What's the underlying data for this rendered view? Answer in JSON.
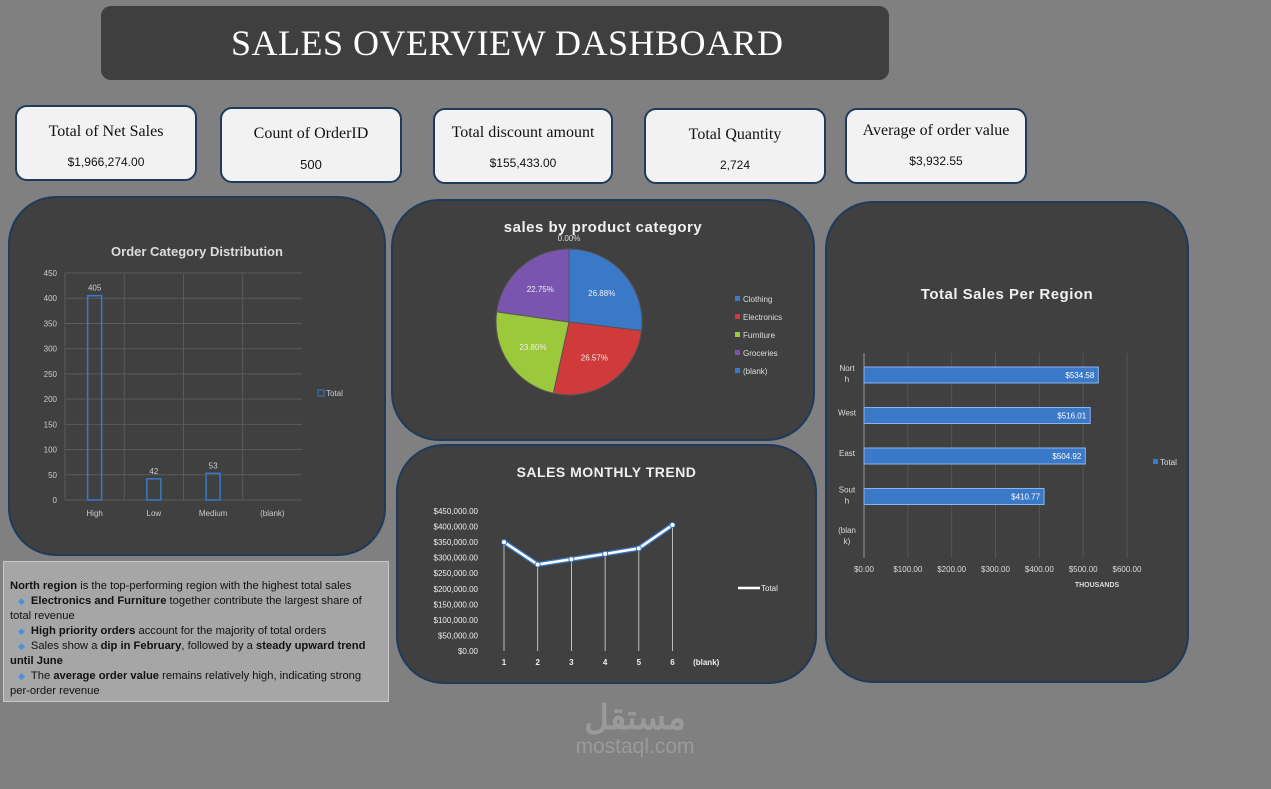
{
  "title": "SALES OVERVIEW DASHBOARD",
  "kpis": [
    {
      "label": "Total of Net Sales",
      "value": "$1,966,274.00"
    },
    {
      "label": "Count of OrderID",
      "value": "500"
    },
    {
      "label": "Total discount amount",
      "value": "$155,433.00"
    },
    {
      "label": "Total Quantity",
      "value": "2,724"
    },
    {
      "label": "Average of order value",
      "value": "$3,932.55"
    }
  ],
  "chart_data": [
    {
      "type": "bar",
      "title": "Order Category Distribution",
      "categories": [
        "High",
        "Low",
        "Medium",
        "(blank)"
      ],
      "values": [
        405,
        42,
        53,
        null
      ],
      "ylim": [
        0,
        450
      ],
      "yticks": [
        "0",
        "50",
        "100",
        "150",
        "200",
        "250",
        "300",
        "350",
        "400",
        "450"
      ],
      "legend": "Total",
      "legend_position": "right",
      "data_labels": [
        "405",
        "42",
        "53",
        ""
      ]
    },
    {
      "type": "pie",
      "title": "sales by  product category",
      "categories": [
        "Clothing",
        "Electronics",
        "Furniture",
        "Groceries",
        "(blank)"
      ],
      "values": [
        26.88,
        26.57,
        23.8,
        22.75,
        0
      ],
      "data_labels": [
        "26.88%",
        "26.57%",
        "23.80%",
        "22.75%",
        "0.00%"
      ],
      "colors": [
        "#3a78c8",
        "#d03a3a",
        "#9cc83c",
        "#7a55b0",
        "#3a78c8"
      ],
      "legend_position": "right"
    },
    {
      "type": "line",
      "title": "SALES MONTHLY TREND",
      "categories": [
        "1",
        "2",
        "3",
        "4",
        "5",
        "6",
        "(blank)"
      ],
      "values": [
        350000,
        278000,
        295000,
        312000,
        330000,
        405000,
        null
      ],
      "ylim": [
        0,
        450000
      ],
      "yticks": [
        "$0.00",
        "$50,000.00",
        "$100,000.00",
        "$150,000.00",
        "$200,000.00",
        "$250,000.00",
        "$300,000.00",
        "$350,000.00",
        "$400,000.00",
        "$450,000.00"
      ],
      "legend": "Total",
      "legend_position": "right"
    },
    {
      "type": "bar",
      "orientation": "horizontal",
      "title": "Total Sales Per Region",
      "categories": [
        "North",
        "West",
        "East",
        "South",
        "(blank)"
      ],
      "category_labels": [
        "Nort h",
        "West",
        "East",
        "Sout h",
        "(blan k)"
      ],
      "values": [
        534.58,
        516.01,
        504.92,
        410.77,
        null
      ],
      "data_labels": [
        "$534.58",
        "$516.01",
        "$504.92",
        "$410.77",
        ""
      ],
      "xlim": [
        0,
        600
      ],
      "xticks": [
        "$0.00",
        "$100.00",
        "$200.00",
        "$300.00",
        "$400.00",
        "$500.00",
        "$600.00"
      ],
      "xlabel": "THOUSANDS",
      "legend": "Total",
      "legend_position": "right"
    }
  ],
  "insights": [
    {
      "bullet": false,
      "parts": [
        {
          "b": true,
          "t": "North region"
        },
        {
          "b": false,
          "t": " is the top-performing region with the highest total sales"
        }
      ]
    },
    {
      "bullet": true,
      "parts": [
        {
          "b": true,
          "t": "Electronics and Furniture"
        },
        {
          "b": false,
          "t": " together contribute the largest share of total revenue"
        }
      ]
    },
    {
      "bullet": true,
      "parts": [
        {
          "b": true,
          "t": "High priority orders"
        },
        {
          "b": false,
          "t": " account for the majority of total orders"
        }
      ]
    },
    {
      "bullet": true,
      "parts": [
        {
          "b": false,
          "t": "Sales show a "
        },
        {
          "b": true,
          "t": "dip in February"
        },
        {
          "b": false,
          "t": ", followed by a "
        },
        {
          "b": true,
          "t": "steady upward trend until June"
        }
      ]
    },
    {
      "bullet": true,
      "parts": [
        {
          "b": false,
          "t": "The "
        },
        {
          "b": true,
          "t": "average order value"
        },
        {
          "b": false,
          "t": " remains relatively high, indicating strong per-order revenue"
        }
      ]
    }
  ],
  "watermark": {
    "arabic": "مستقل",
    "latin": "mostaql.com"
  }
}
